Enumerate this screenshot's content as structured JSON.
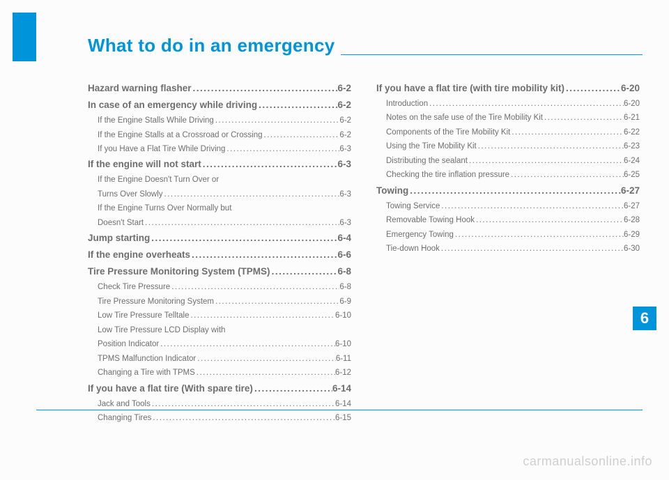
{
  "chapter_title": "What to do in an emergency",
  "section_number": "6",
  "watermark": "carmanualsonline.info",
  "toc": {
    "left": [
      {
        "level": "h1",
        "label": "Hazard warning flasher",
        "page": "6-2"
      },
      {
        "level": "h1",
        "label": "In case of an emergency while driving",
        "page": "6-2"
      },
      {
        "level": "sub",
        "label": "If the Engine Stalls While Driving",
        "page": "6-2"
      },
      {
        "level": "sub",
        "label": "If the Engine Stalls at a Crossroad or Crossing",
        "page": "6-2"
      },
      {
        "level": "sub",
        "label": "If you Have a Flat Tire While Driving",
        "page": "6-3"
      },
      {
        "level": "h1",
        "label": "If the engine will not start",
        "page": "6-3"
      },
      {
        "level": "sub",
        "label": "If the Engine Doesn't Turn Over or",
        "page": null
      },
      {
        "level": "sub",
        "label": "Turns Over Slowly",
        "page": "6-3"
      },
      {
        "level": "sub",
        "label": "If the Engine Turns Over Normally but",
        "page": null
      },
      {
        "level": "sub",
        "label": "Doesn't Start",
        "page": "6-3"
      },
      {
        "level": "h1",
        "label": "Jump starting",
        "page": "6-4"
      },
      {
        "level": "h1",
        "label": "If the engine overheats",
        "page": "6-6"
      },
      {
        "level": "h1",
        "label": "Tire Pressure Monitoring System (TPMS)",
        "page": "6-8"
      },
      {
        "level": "sub",
        "label": "Check Tire Pressure",
        "page": "6-8"
      },
      {
        "level": "sub",
        "label": "Tire Pressure Monitoring System",
        "page": "6-9"
      },
      {
        "level": "sub",
        "label": "Low Tire Pressure Telltale",
        "page": "6-10"
      },
      {
        "level": "sub",
        "label": "Low Tire Pressure LCD Display with",
        "page": null
      },
      {
        "level": "sub",
        "label": "Position Indicator",
        "page": "6-10"
      },
      {
        "level": "sub",
        "label": "TPMS Malfunction Indicator",
        "page": "6-11"
      },
      {
        "level": "sub",
        "label": "Changing a Tire with TPMS",
        "page": "6-12"
      },
      {
        "level": "h1",
        "label": "If you have a flat tire (With spare tire)",
        "page": "6-14"
      },
      {
        "level": "sub",
        "label": "Jack and Tools",
        "page": "6-14"
      },
      {
        "level": "sub",
        "label": "Changing Tires",
        "page": "6-15"
      }
    ],
    "right": [
      {
        "level": "h1",
        "label": "If you have a flat tire (with tire mobility kit)",
        "page": "6-20"
      },
      {
        "level": "sub",
        "label": "Introduction",
        "page": "6-20"
      },
      {
        "level": "sub",
        "label": "Notes on the safe use of the Tire Mobility Kit",
        "page": "6-21"
      },
      {
        "level": "sub",
        "label": "Components of the Tire Mobility Kit",
        "page": "6-22"
      },
      {
        "level": "sub",
        "label": "Using the Tire Mobility Kit",
        "page": "6-23"
      },
      {
        "level": "sub",
        "label": "Distributing the sealant",
        "page": "6-24"
      },
      {
        "level": "sub",
        "label": "Checking the tire inflation pressure",
        "page": "6-25"
      },
      {
        "level": "h1",
        "label": "Towing",
        "page": "6-27"
      },
      {
        "level": "sub",
        "label": "Towing Service",
        "page": "6-27"
      },
      {
        "level": "sub",
        "label": "Removable Towing Hook",
        "page": "6-28"
      },
      {
        "level": "sub",
        "label": "Emergency Towing",
        "page": "6-29"
      },
      {
        "level": "sub",
        "label": "Tie-down Hook",
        "page": "6-30"
      }
    ]
  },
  "colors": {
    "accent": "#0095db",
    "text": "#6e6e6e",
    "watermark": "#cfcfcf",
    "background": "#fcfcfc"
  }
}
